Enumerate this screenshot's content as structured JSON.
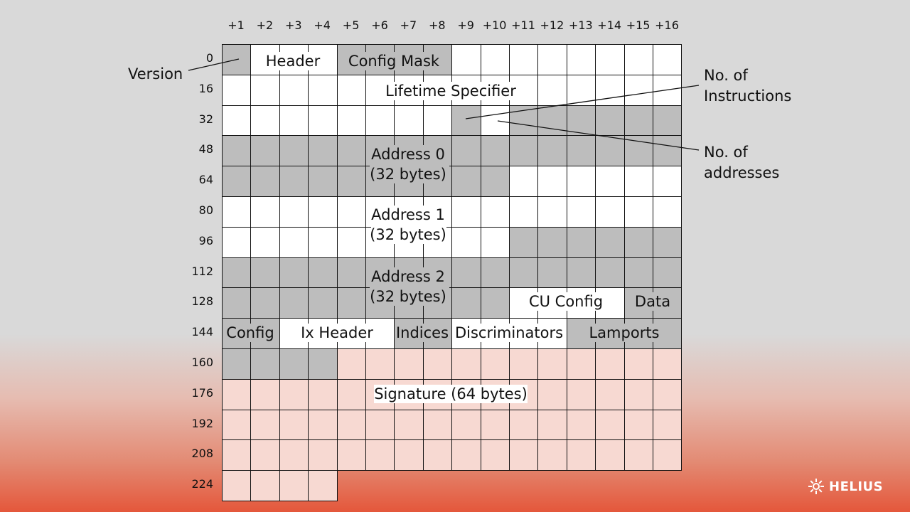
{
  "columns": [
    "+1",
    "+2",
    "+3",
    "+4",
    "+5",
    "+6",
    "+7",
    "+8",
    "+9",
    "+10",
    "+11",
    "+12",
    "+13",
    "+14",
    "+15",
    "+16"
  ],
  "rows": [
    "0",
    "16",
    "32",
    "48",
    "64",
    "80",
    "96",
    "112",
    "128",
    "144",
    "160",
    "176",
    "192",
    "208",
    "224"
  ],
  "colors": {
    "white": "#ffffff",
    "gray": "#bdbdbd",
    "pink": "#f7d9d2",
    "grid_line": "#111111"
  },
  "fields": {
    "header": "Header",
    "config_mask": "Config Mask",
    "lifetime": "Lifetime Specifier",
    "address0": [
      "Address 0",
      "(32 bytes)"
    ],
    "address1": [
      "Address 1",
      "(32 bytes)"
    ],
    "address2": [
      "Address 2",
      "(32 bytes)"
    ],
    "cu_config": "CU Config",
    "data": "Data",
    "config": "Config",
    "ix_header": "Ix Header",
    "indices": "Indices",
    "discriminators": "Discriminators",
    "lamports": "Lamports",
    "signature": "Signature (64 bytes)"
  },
  "annotations": {
    "version": "Version",
    "instructions": [
      "No. of",
      "Instructions"
    ],
    "addresses": [
      "No. of",
      "addresses"
    ]
  },
  "logo": {
    "name": "HELIUS",
    "icon": "helius-sun-icon"
  }
}
